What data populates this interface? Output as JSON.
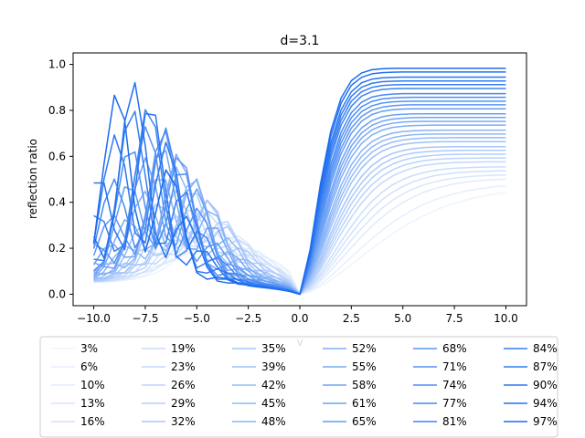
{
  "chart_data": {
    "type": "line",
    "title": "d=3.1",
    "xlabel": "v",
    "ylabel": "reflection ratio",
    "xlim": [
      -11.0,
      11.0
    ],
    "ylim": [
      -0.05,
      1.05
    ],
    "xticks": [
      -10.0,
      -7.5,
      -5.0,
      -2.5,
      0.0,
      2.5,
      5.0,
      7.5,
      10.0
    ],
    "xtick_labels": [
      "−10.0",
      "−7.5",
      "−5.0",
      "−2.5",
      "0.0",
      "2.5",
      "5.0",
      "7.5",
      "10.0"
    ],
    "yticks": [
      0.0,
      0.2,
      0.4,
      0.6,
      0.8,
      1.0
    ],
    "ytick_labels": [
      "0.0",
      "0.2",
      "0.4",
      "0.6",
      "0.8",
      "1.0"
    ],
    "grid": false,
    "legend": {
      "placement": "bottom",
      "columns": 6
    },
    "color_light": "#eef4fe",
    "color_dark": "#1a6cf0",
    "series_names": [
      "3%",
      "6%",
      "10%",
      "13%",
      "16%",
      "19%",
      "23%",
      "26%",
      "29%",
      "32%",
      "35%",
      "39%",
      "42%",
      "45%",
      "48%",
      "52%",
      "55%",
      "58%",
      "61%",
      "65%",
      "68%",
      "71%",
      "74%",
      "77%",
      "81%",
      "84%",
      "87%",
      "90%",
      "94%",
      "97%"
    ],
    "x": [
      -10.0,
      -9.5,
      -9.0,
      -8.5,
      -8.0,
      -7.5,
      -7.0,
      -6.5,
      -6.0,
      -5.5,
      -5.0,
      -4.5,
      -4.0,
      -3.5,
      -3.0,
      -2.5,
      -2.0,
      -1.5,
      -1.0,
      -0.5,
      0.0,
      0.5,
      1.0,
      1.5,
      2.0,
      2.5,
      3.0,
      3.5,
      4.0,
      4.5,
      5.0,
      5.5,
      6.0,
      6.5,
      7.0,
      7.5,
      8.0,
      8.5,
      9.0,
      9.5,
      10.0
    ]
  }
}
